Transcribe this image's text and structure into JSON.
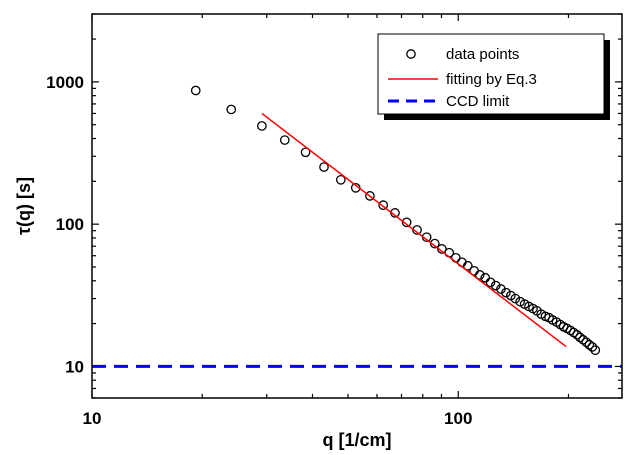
{
  "chart_data": {
    "type": "scatter",
    "xlabel": "q [1/cm]",
    "ylabel": "τ(q) [s]",
    "xscale": "log",
    "yscale": "log",
    "xlim": [
      10,
      280
    ],
    "ylim": [
      6,
      3000
    ],
    "x_ticks": [
      {
        "value": 10,
        "label": "10"
      },
      {
        "value": 100,
        "label": "100"
      }
    ],
    "y_ticks": [
      {
        "value": 10,
        "label": "10"
      },
      {
        "value": 100,
        "label": "100"
      },
      {
        "value": 1000,
        "label": "1000"
      }
    ],
    "legend_position": "top-right",
    "series": [
      {
        "name": "data points",
        "kind": "scatter",
        "marker": "open-circle",
        "color": "#000000",
        "x": [
          19.2,
          24.0,
          29.1,
          33.6,
          38.3,
          43.0,
          47.8,
          52.5,
          57.4,
          62.4,
          67.2,
          72.3,
          77.2,
          82.0,
          86.3,
          90.2,
          94.5,
          98.5,
          102.3,
          106.2,
          110.5,
          114.5,
          118.5,
          122.5,
          126.6,
          130.8,
          135.0,
          139.2,
          143.2,
          147.6,
          151.8,
          156.0,
          160.0,
          164.0,
          168.5,
          173.0,
          177.0,
          181.0,
          185.5,
          190.0,
          194.0,
          198.2,
          202.5,
          206.7,
          211.0,
          215.0,
          219.3,
          223.7,
          228.0,
          232.3,
          236.7
        ],
        "y": [
          870,
          640,
          490,
          390,
          320,
          252,
          205,
          180,
          158,
          136,
          120,
          103,
          91,
          81,
          73,
          67,
          63,
          58,
          54,
          51,
          47,
          44,
          42,
          39,
          37,
          35,
          33,
          31.5,
          30,
          28.5,
          27.4,
          26.4,
          25.5,
          24.6,
          23.3,
          22.5,
          22,
          21.2,
          20.5,
          19.7,
          19,
          18.5,
          17.9,
          17.3,
          16.7,
          16,
          15.4,
          14.8,
          14.2,
          13.7,
          13
        ]
      },
      {
        "name": "fitting by Eq.3",
        "kind": "line",
        "color": "#ff0000",
        "x": [
          29.1,
          197.0
        ],
        "y": [
          600,
          13.8
        ]
      },
      {
        "name": "CCD limit",
        "kind": "line",
        "style": "dashed",
        "color": "#0000ff",
        "x": [
          10,
          280
        ],
        "y": [
          10,
          10
        ]
      }
    ]
  }
}
